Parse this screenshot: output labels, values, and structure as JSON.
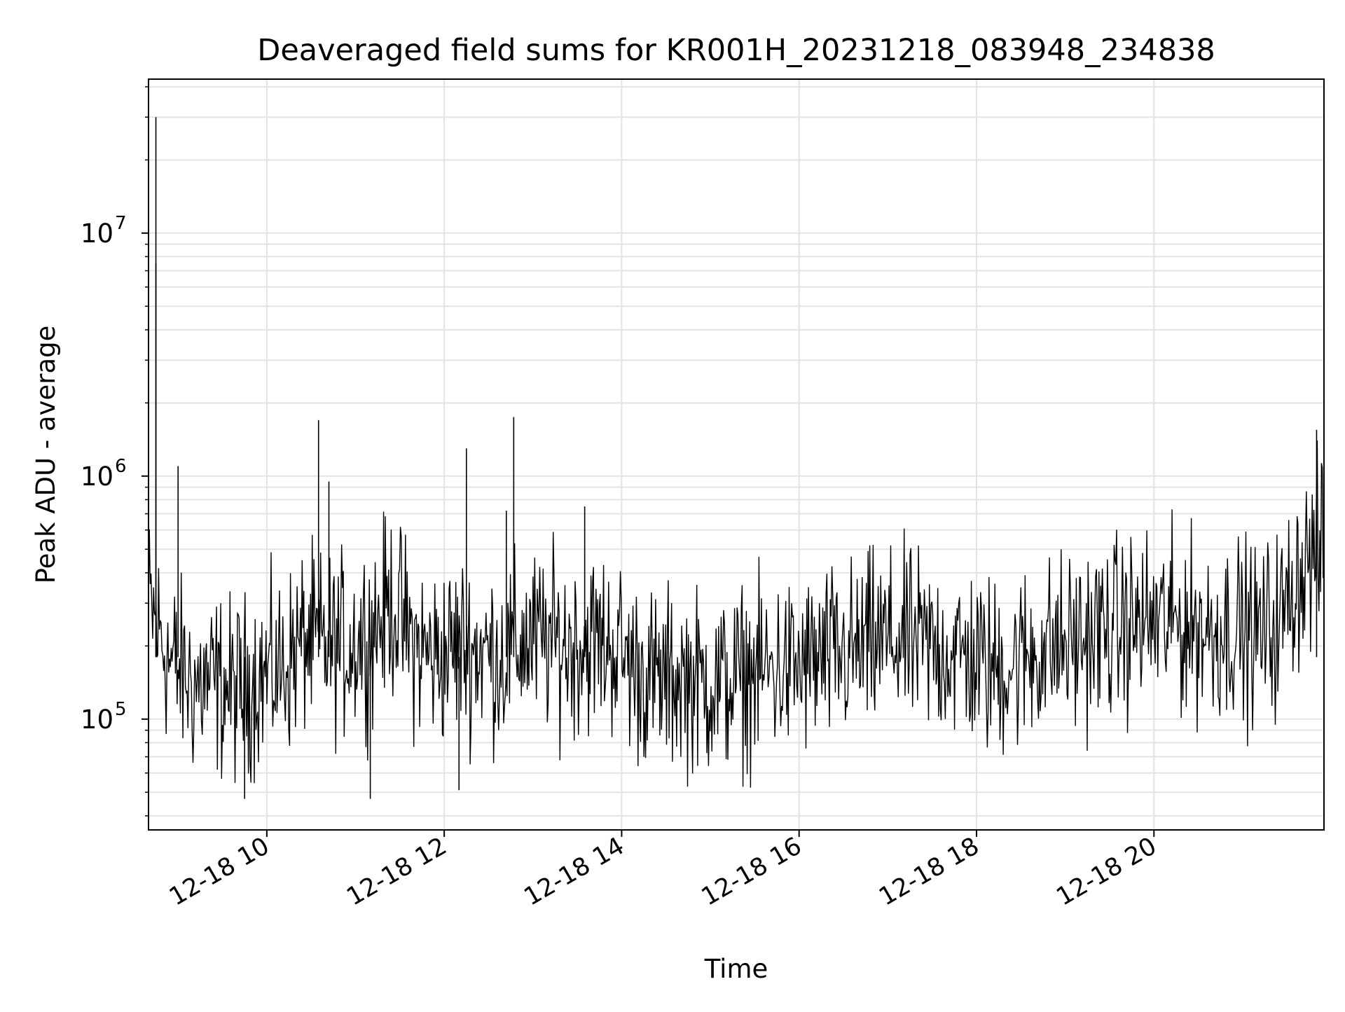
{
  "chart_data": {
    "type": "line",
    "title": "Deaveraged field sums for KR001H_20231218_083948_234838",
    "xlabel": "Time",
    "ylabel": "Peak ADU - average",
    "x_range": [
      "2023-12-18 08:40",
      "2023-12-18 21:55"
    ],
    "y_scale": "log",
    "ylim": [
      35000,
      43000000
    ],
    "x_tick_labels": [
      "12-18 10",
      "12-18 12",
      "12-18 14",
      "12-18 16",
      "12-18 18",
      "12-18 20"
    ],
    "x_tick_values": [
      "2023-12-18 10:00",
      "2023-12-18 12:00",
      "2023-12-18 14:00",
      "2023-12-18 16:00",
      "2023-12-18 18:00",
      "2023-12-18 20:00"
    ],
    "y_tick_labels": [
      {
        "base": "10",
        "exp": "5"
      },
      {
        "base": "10",
        "exp": "6"
      },
      {
        "base": "10",
        "exp": "7"
      }
    ],
    "y_tick_values": [
      100000,
      1000000,
      10000000
    ],
    "grid": true,
    "line_color": "#000000",
    "series": [
      {
        "x": [
          "2023-12-18 08:40",
          "2023-12-18 08:55",
          "2023-12-18 09:10",
          "2023-12-18 09:25",
          "2023-12-18 09:40",
          "2023-12-18 09:55",
          "2023-12-18 10:10",
          "2023-12-18 10:25",
          "2023-12-18 10:40",
          "2023-12-18 10:55",
          "2023-12-18 11:10",
          "2023-12-18 11:25",
          "2023-12-18 11:40",
          "2023-12-18 11:55",
          "2023-12-18 12:10",
          "2023-12-18 12:25",
          "2023-12-18 12:40",
          "2023-12-18 12:55",
          "2023-12-18 13:10",
          "2023-12-18 13:25",
          "2023-12-18 13:40",
          "2023-12-18 13:55",
          "2023-12-18 14:10",
          "2023-12-18 14:25",
          "2023-12-18 14:40",
          "2023-12-18 14:55",
          "2023-12-18 15:10",
          "2023-12-18 15:25",
          "2023-12-18 15:40",
          "2023-12-18 15:55",
          "2023-12-18 16:10",
          "2023-12-18 16:25",
          "2023-12-18 16:40",
          "2023-12-18 16:55",
          "2023-12-18 17:10",
          "2023-12-18 17:25",
          "2023-12-18 17:40",
          "2023-12-18 17:55",
          "2023-12-18 18:10",
          "2023-12-18 18:25",
          "2023-12-18 18:40",
          "2023-12-18 18:55",
          "2023-12-18 19:10",
          "2023-12-18 19:25",
          "2023-12-18 19:40",
          "2023-12-18 19:55",
          "2023-12-18 20:10",
          "2023-12-18 20:25",
          "2023-12-18 20:40",
          "2023-12-18 20:55",
          "2023-12-18 21:10",
          "2023-12-18 21:25",
          "2023-12-18 21:40",
          "2023-12-18 21:55"
        ],
        "y": [
          300000,
          170000,
          140000,
          140000,
          130000,
          150000,
          160000,
          210000,
          200000,
          200000,
          230000,
          300000,
          200000,
          180000,
          200000,
          190000,
          180000,
          210000,
          210000,
          200000,
          210000,
          200000,
          160000,
          140000,
          150000,
          140000,
          140000,
          150000,
          160000,
          160000,
          170000,
          180000,
          190000,
          210000,
          210000,
          200000,
          190000,
          180000,
          160000,
          170000,
          190000,
          200000,
          210000,
          230000,
          240000,
          250000,
          250000,
          240000,
          230000,
          240000,
          220000,
          250000,
          420000,
          520000
        ]
      }
    ],
    "spikes": [
      {
        "x": "2023-12-18 08:45",
        "y": 30000000
      },
      {
        "x": "2023-12-18 08:45",
        "y": 7500000
      },
      {
        "x": "2023-12-18 09:00",
        "y": 1100000
      },
      {
        "x": "2023-12-18 10:35",
        "y": 1700000
      },
      {
        "x": "2023-12-18 10:42",
        "y": 950000
      },
      {
        "x": "2023-12-18 12:15",
        "y": 1300000
      },
      {
        "x": "2023-12-18 12:42",
        "y": 720000
      },
      {
        "x": "2023-12-18 12:47",
        "y": 1750000
      },
      {
        "x": "2023-12-18 13:35",
        "y": 750000
      },
      {
        "x": "2023-12-18 21:50",
        "y": 1550000
      },
      {
        "x": "2023-12-18 09:45",
        "y": 47000
      },
      {
        "x": "2023-12-18 11:10",
        "y": 47000
      },
      {
        "x": "2023-12-18 12:10",
        "y": 51000
      }
    ]
  }
}
